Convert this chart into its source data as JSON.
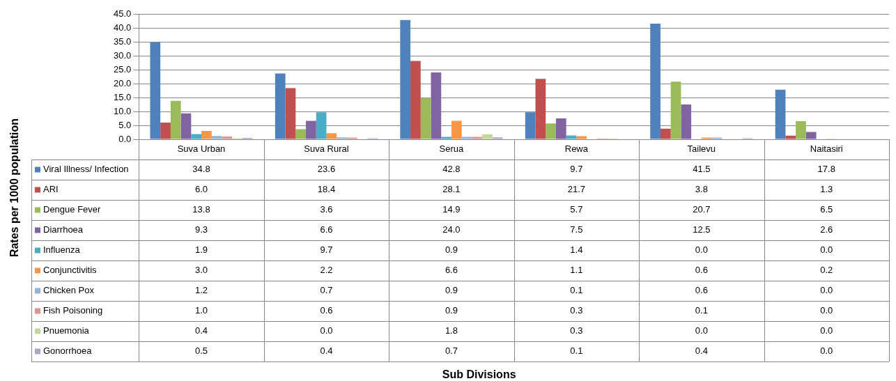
{
  "chart_data": {
    "type": "bar",
    "annotations": [
      "Sub Divisions",
      "Rates per 1000 population"
    ],
    "categories": [
      "Suva Urban",
      "Suva Rural",
      "Serua",
      "Rewa",
      "Tailevu",
      "Naitasiri"
    ],
    "series": [
      {
        "name": "Viral Illness/ Infection",
        "color": "#4f81bd",
        "values": [
          34.8,
          23.6,
          42.8,
          9.7,
          41.5,
          17.8
        ],
        "value_labels": [
          "34.8",
          "23.6",
          "42.8",
          "9.7",
          "41.5",
          "17.8"
        ]
      },
      {
        "name": "ARI",
        "color": "#c0504d",
        "values": [
          6.0,
          18.4,
          28.1,
          21.7,
          3.8,
          1.3
        ],
        "value_labels": [
          "6.0",
          "18.4",
          "28.1",
          "21.7",
          "3.8",
          "1.3"
        ]
      },
      {
        "name": "Dengue Fever",
        "color": "#9bbb59",
        "values": [
          13.8,
          3.6,
          14.9,
          5.7,
          20.7,
          6.5
        ],
        "value_labels": [
          "13.8",
          "3.6",
          "14.9",
          "5.7",
          "20.7",
          "6.5"
        ]
      },
      {
        "name": "Diarrhoea",
        "color": "#8064a2",
        "values": [
          9.3,
          6.6,
          24.0,
          7.5,
          12.5,
          2.6
        ],
        "value_labels": [
          "9.3",
          "6.6",
          "24.0",
          "7.5",
          "12.5",
          "2.6"
        ]
      },
      {
        "name": "Influenza",
        "color": "#4bacc6",
        "values": [
          1.9,
          9.7,
          0.9,
          1.4,
          0.0,
          0.0
        ],
        "value_labels": [
          "1.9",
          "9.7",
          "0.9",
          "1.4",
          "0.0",
          "0.0"
        ]
      },
      {
        "name": "Conjunctivitis",
        "color": "#f79646",
        "values": [
          3.0,
          2.2,
          6.6,
          1.1,
          0.6,
          0.2
        ],
        "value_labels": [
          "3.0",
          "2.2",
          "6.6",
          "1.1",
          "0.6",
          "0.2"
        ]
      },
      {
        "name": "Chicken Pox",
        "color": "#95b3d7",
        "values": [
          1.2,
          0.7,
          0.9,
          0.1,
          0.6,
          0.0
        ],
        "value_labels": [
          "1.2",
          "0.7",
          "0.9",
          "0.1",
          "0.6",
          "0.0"
        ]
      },
      {
        "name": "Fish Poisoning",
        "color": "#d99694",
        "values": [
          1.0,
          0.6,
          0.9,
          0.3,
          0.1,
          0.0
        ],
        "value_labels": [
          "1.0",
          "0.6",
          "0.9",
          "0.3",
          "0.1",
          "0.0"
        ]
      },
      {
        "name": "Pnuemonia",
        "color": "#c3d69b",
        "values": [
          0.4,
          0.0,
          1.8,
          0.3,
          0.0,
          0.0
        ],
        "value_labels": [
          "0.4",
          "0.0",
          "1.8",
          "0.3",
          "0.0",
          "0.0"
        ]
      },
      {
        "name": "Gonorrhoea",
        "color": "#b3a2c7",
        "values": [
          0.5,
          0.4,
          0.7,
          0.1,
          0.4,
          0.0
        ],
        "value_labels": [
          "0.5",
          "0.4",
          "0.7",
          "0.1",
          "0.4",
          "0.0"
        ]
      }
    ],
    "ylim": [
      0,
      45
    ],
    "yticks": [
      {
        "value": 0,
        "label": "0.0"
      },
      {
        "value": 5,
        "label": "5.0"
      },
      {
        "value": 10,
        "label": "10.0"
      },
      {
        "value": 15,
        "label": "15.0"
      },
      {
        "value": 20,
        "label": "20.0"
      },
      {
        "value": 25,
        "label": "25.0"
      },
      {
        "value": 30,
        "label": "30.0"
      },
      {
        "value": 35,
        "label": "35.0"
      },
      {
        "value": 40,
        "label": "40.0"
      },
      {
        "value": 45,
        "label": "45.0"
      }
    ],
    "grid": "y",
    "legend": "bottom left"
  }
}
